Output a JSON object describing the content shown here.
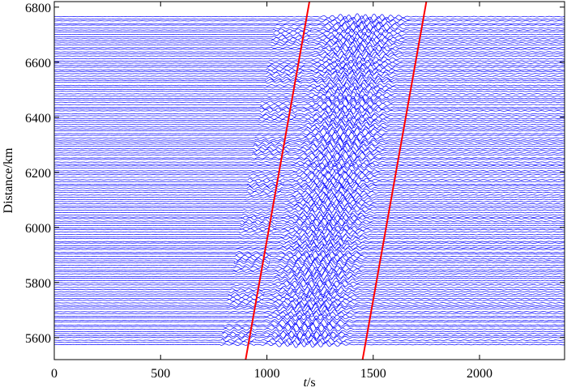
{
  "chart_data": {
    "type": "line",
    "xlabel_italic": "t",
    "xlabel_unit": "/s",
    "ylabel": "Distance/km",
    "xlim": [
      0,
      2400
    ],
    "ylim": [
      5520,
      6820
    ],
    "x_ticks": [
      0,
      500,
      1000,
      1500,
      2000
    ],
    "x_tick_labels": [
      "0",
      "500",
      "1000",
      "1500",
      "2000"
    ],
    "y_ticks": [
      5600,
      5800,
      6000,
      6200,
      6400,
      6600,
      6800
    ],
    "y_tick_labels": [
      "5600",
      "5800",
      "6000",
      "6200",
      "6400",
      "6600",
      "6800"
    ],
    "trace_color": "#0000ff",
    "trace_distance_range": [
      5575,
      6765
    ],
    "trace_time_range": [
      0,
      2400
    ],
    "reference_lines": [
      {
        "x": [
          900,
          1200
        ],
        "y": [
          5520,
          6820
        ],
        "color": "#ff0000"
      },
      {
        "x": [
          1450,
          1750
        ],
        "y": [
          5520,
          6820
        ],
        "color": "#ff0000"
      }
    ]
  }
}
